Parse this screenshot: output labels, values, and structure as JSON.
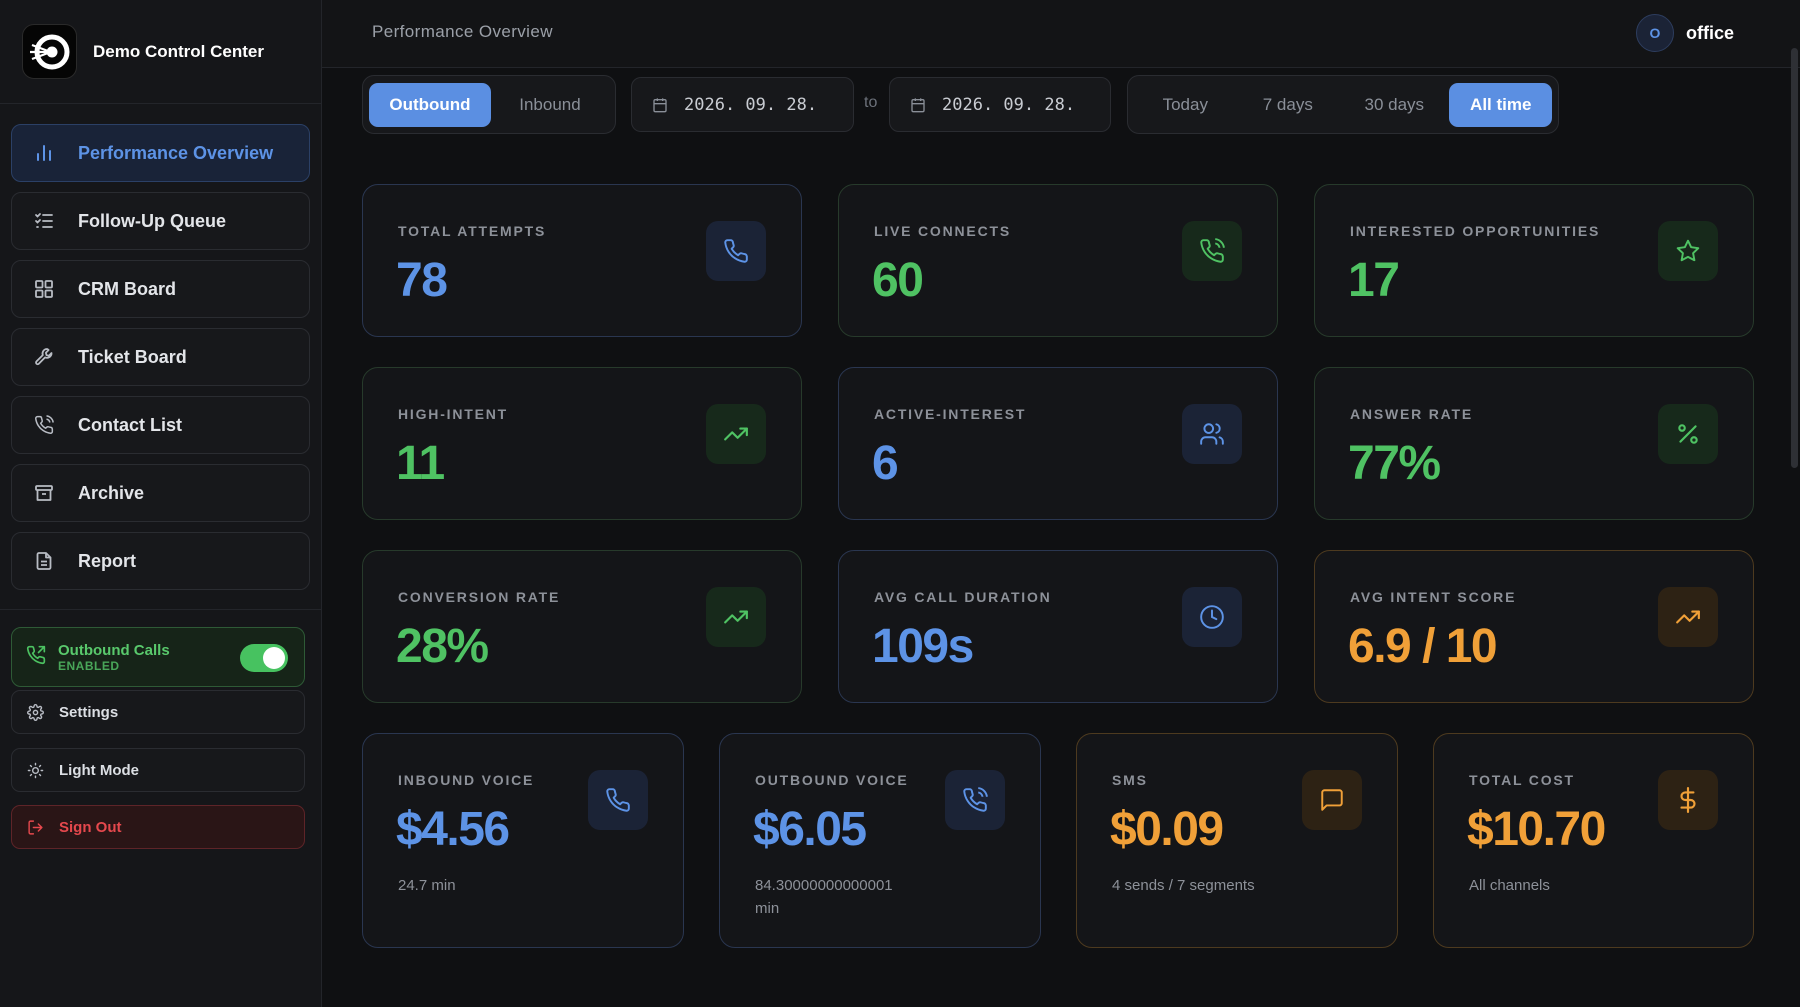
{
  "app": {
    "title": "Demo Control Center"
  },
  "sidebar": {
    "items": [
      {
        "label": "Performance Overview",
        "icon": "bar-chart-icon"
      },
      {
        "label": "Follow-Up Queue",
        "icon": "checklist-icon"
      },
      {
        "label": "CRM Board",
        "icon": "grid-icon"
      },
      {
        "label": "Ticket Board",
        "icon": "wrench-icon"
      },
      {
        "label": "Contact List",
        "icon": "phone-icon"
      },
      {
        "label": "Archive",
        "icon": "archive-icon"
      },
      {
        "label": "Report",
        "icon": "document-icon"
      }
    ],
    "outbound_toggle": {
      "title": "Outbound Calls",
      "status": "ENABLED",
      "on": true
    },
    "settings_label": "Settings",
    "theme_label": "Light Mode",
    "signout_label": "Sign Out"
  },
  "header": {
    "title": "Performance Overview",
    "avatar_initial": "O",
    "user": "office"
  },
  "filters": {
    "direction": [
      "Outbound",
      "Inbound"
    ],
    "direction_selected": "Outbound",
    "date_from": "2026. 09. 28.",
    "to_label": "to",
    "date_to": "2026. 09. 28.",
    "ranges": [
      "Today",
      "7 days",
      "30 days",
      "All time"
    ],
    "range_selected": "All time"
  },
  "metrics": [
    {
      "label": "TOTAL ATTEMPTS",
      "value": "78",
      "icon": "phone-icon",
      "color": "#5d93e6"
    },
    {
      "label": "LIVE CONNECTS",
      "value": "60",
      "icon": "phone-call-icon",
      "color": "#4fc263"
    },
    {
      "label": "INTERESTED OPPORTUNITIES",
      "value": "17",
      "icon": "star-icon",
      "color": "#4fc263"
    },
    {
      "label": "HIGH-INTENT",
      "value": "11",
      "icon": "trending-up-icon",
      "color": "#4fc263"
    },
    {
      "label": "ACTIVE-INTEREST",
      "value": "6",
      "icon": "users-icon",
      "color": "#5d93e6"
    },
    {
      "label": "ANSWER RATE",
      "value": "77%",
      "icon": "percent-icon",
      "color": "#4fc263"
    },
    {
      "label": "CONVERSION RATE",
      "value": "28%",
      "icon": "trending-up-icon",
      "color": "#4fc263"
    },
    {
      "label": "AVG CALL DURATION",
      "value": "109s",
      "icon": "clock-icon",
      "color": "#5d93e6"
    },
    {
      "label": "AVG INTENT SCORE",
      "value": "6.9 / 10",
      "icon": "trending-up-icon",
      "color": "#f0a038"
    }
  ],
  "costs": [
    {
      "label": "INBOUND VOICE",
      "value": "$4.56",
      "sub": "24.7 min",
      "icon": "phone-icon",
      "color": "#5d93e6"
    },
    {
      "label": "OUTBOUND VOICE",
      "value": "$6.05",
      "sub": "84.30000000000001 min",
      "icon": "phone-call-icon",
      "color": "#5d93e6"
    },
    {
      "label": "SMS",
      "value": "$0.09",
      "sub": "4 sends / 7 segments",
      "icon": "message-icon",
      "color": "#f0a038"
    },
    {
      "label": "TOTAL COST",
      "value": "$10.70",
      "sub": "All channels",
      "icon": "dollar-icon",
      "color": "#f0a038"
    }
  ]
}
